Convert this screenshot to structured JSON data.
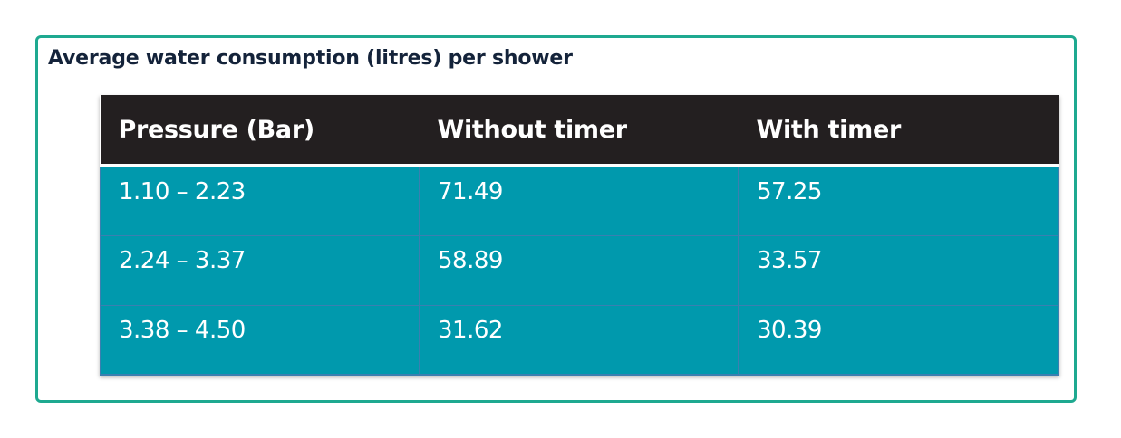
{
  "title": "Average water consumption (litres) per shower",
  "table": {
    "header": [
      "Pressure (Bar)",
      "Without timer",
      "With timer"
    ],
    "rows": [
      [
        "1.10 – 2.23",
        "71.49",
        "57.25"
      ],
      [
        "2.24 – 3.37",
        "58.89",
        "33.57"
      ],
      [
        "3.38 – 4.50",
        "31.62",
        "30.39"
      ]
    ]
  }
}
